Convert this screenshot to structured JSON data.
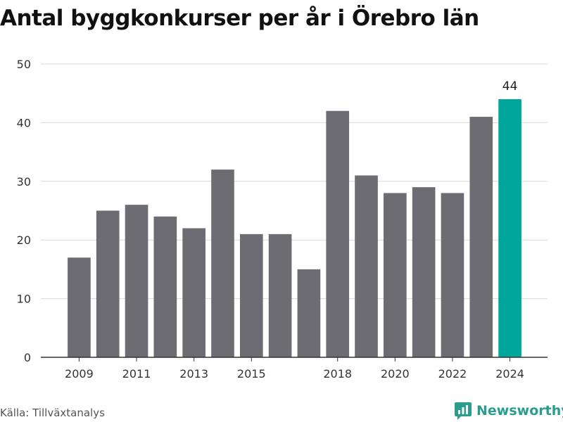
{
  "title": "Antal byggkonkurser per år i Örebro län",
  "source": "Källa: Tillväxtanalys",
  "brand": {
    "name": "Newsworthy",
    "icon": "newsworthy-logo-icon",
    "color": "#2a9d8f"
  },
  "colors": {
    "bar": "#6d6c72",
    "highlight": "#00a69c",
    "grid": "#d9d9d9",
    "axis": "#333333"
  },
  "chart_data": {
    "type": "bar",
    "title": "Antal byggkonkurser per år i Örebro län",
    "xlabel": "",
    "ylabel": "",
    "categories": [
      "2009",
      "2010",
      "2011",
      "2012",
      "2013",
      "2014",
      "2015",
      "2016",
      "2017",
      "2018",
      "2019",
      "2020",
      "2021",
      "2022",
      "2023",
      "2024"
    ],
    "values": [
      17,
      25,
      26,
      24,
      22,
      32,
      21,
      21,
      15,
      42,
      31,
      28,
      29,
      28,
      41,
      44
    ],
    "x_tick_labels": [
      "2009",
      "2011",
      "2013",
      "2015",
      "2018",
      "2020",
      "2022",
      "2024"
    ],
    "y_ticks": [
      0,
      10,
      20,
      30,
      40,
      50
    ],
    "ylim": [
      0,
      50
    ],
    "grid": true,
    "highlight_category": "2024",
    "data_labels": [
      {
        "category": "2024",
        "text": "44"
      }
    ]
  }
}
